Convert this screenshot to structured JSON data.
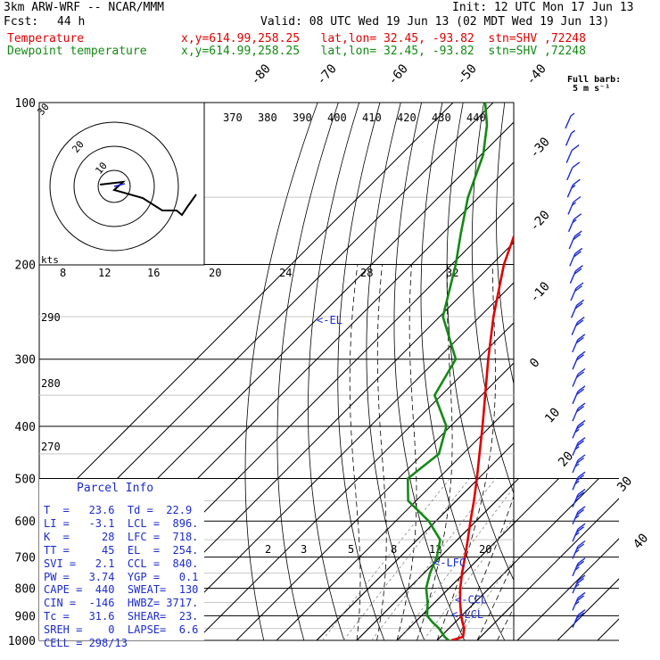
{
  "header": {
    "model": "3km ARW-WRF -- NCAR/MMM",
    "init": "Init: 12 UTC Mon 17 Jun 13",
    "fcst_label": "Fcst:",
    "fcst_value": "44 h",
    "valid": "Valid: 08 UTC Wed 19 Jun 13 (02 MDT Wed 19 Jun 13)",
    "temp_label": "Temperature",
    "temp_info": "x,y=614.99,258.25   lat,lon= 32.45, -93.82  stn=SHV ,72248",
    "dew_label": "Dewpoint temperature",
    "dew_info": "x,y=614.99,258.25   lat,lon= 32.45, -93.82  stn=SHV ,72248",
    "full_barb": "Full barb:",
    "full_barb_unit": "5 m s⁻¹"
  },
  "parcel": {
    "title": "Parcel Info",
    "rows": [
      "T  =   23.6  Td =  22.9",
      "LI =   -3.1  LCL =  896.",
      "K  =     28  LFC =  718.",
      "TT =     45  EL  =  254.",
      "SVI =   2.1  CCL =  840.",
      "PW =   3.74  YGP =   0.1",
      "CAPE =  440  SWEAT=  130",
      "CIN =  -146  HWBZ= 3717.",
      "Tc =   31.6  SHEAR=  23.",
      "SREH =    0  LAPSE=  6.6",
      "CELL = 298/13"
    ]
  },
  "levels": {
    "el": "<-EL",
    "lfc": "<-LFC",
    "ccl": "<-CCL",
    "lcl": "<-LCL"
  },
  "colors": {
    "temperature": "#e00000",
    "dewpoint": "#138a13",
    "parcel": "#1c2bd0",
    "grid": "#000000"
  },
  "chart_data": {
    "type": "line",
    "title": "",
    "ylabel": "",
    "xlabel": "",
    "y_scale": "log-pressure",
    "pressure_ticks": [
      "100",
      "200",
      "300",
      "400",
      "500",
      "600",
      "700",
      "800",
      "900",
      "1000"
    ],
    "pressure_ticks_num": [
      100,
      200,
      300,
      400,
      500,
      600,
      700,
      800,
      900,
      1000
    ],
    "isotherm_labels": [
      "-80",
      "-70",
      "-60",
      "-50",
      "-40",
      "-30",
      "-20",
      "-10",
      "0",
      "10",
      "20",
      "30",
      "40"
    ],
    "isotherm_values": [
      -80,
      -70,
      -60,
      -50,
      -40,
      -30,
      -20,
      -10,
      0,
      10,
      20,
      30,
      40
    ],
    "theta_labels": [
      "370",
      "380",
      "390",
      "400",
      "410",
      "420",
      "430",
      "440"
    ],
    "theta_side_labels": [
      "290",
      "280",
      "270"
    ],
    "mixing_ratio_labels_top": [
      "8",
      "12",
      "16",
      "20",
      "24",
      "28",
      "32"
    ],
    "mixing_ratio_labels_low": [
      "2",
      "3",
      "5",
      "8",
      "12",
      "20"
    ],
    "hodograph": {
      "units_label": "kts",
      "ring_labels": [
        "30",
        "20",
        "10"
      ]
    },
    "series": [
      {
        "name": "Temperature",
        "pressure": [
          1000,
          985,
          950,
          925,
          900,
          850,
          800,
          750,
          700,
          650,
          600,
          550,
          500,
          450,
          400,
          350,
          300,
          250,
          200,
          175,
          150,
          125,
          110,
          100
        ],
        "temp_c": [
          23.6,
          25.6,
          23.8,
          21.8,
          19.9,
          16.3,
          12.8,
          9.5,
          6.2,
          2.6,
          -1.4,
          -5.6,
          -10.4,
          -15.9,
          -22.0,
          -29.1,
          -37.3,
          -46.6,
          -57.0,
          -62.0,
          -66.5,
          -66.5,
          -65.5,
          -62.0
        ]
      },
      {
        "name": "Dewpoint temperature",
        "pressure": [
          1000,
          985,
          950,
          925,
          900,
          850,
          800,
          750,
          700,
          650,
          600,
          550,
          500,
          450,
          400,
          350,
          300,
          250,
          200,
          175,
          150,
          125,
          110,
          100
        ],
        "temp_c": [
          22.9,
          21.0,
          17.5,
          14.3,
          11.4,
          8.2,
          4.3,
          1.5,
          -0.8,
          -4.3,
          -11.8,
          -22.0,
          -27.6,
          -26.0,
          -31.0,
          -41.7,
          -45.4,
          -59.2,
          -69.0,
          -75.5,
          -82.7,
          -89.5,
          -96.0,
          -102.0
        ]
      }
    ],
    "wind_barbs": {
      "count": 30,
      "speed_ms": [
        3,
        4,
        6,
        7,
        8,
        9,
        9,
        10,
        10,
        10,
        10,
        11,
        11,
        11,
        11,
        12,
        12,
        12,
        13,
        13,
        14,
        14,
        14,
        14,
        14,
        14,
        14,
        14,
        14,
        14
      ]
    }
  }
}
